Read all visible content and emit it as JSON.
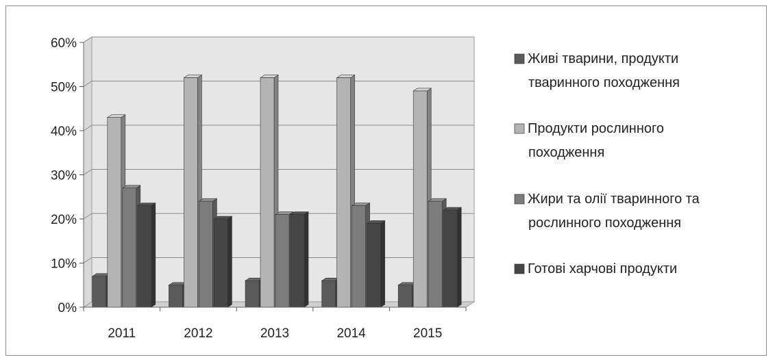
{
  "chart_data": {
    "type": "bar",
    "title": "",
    "xlabel": "",
    "ylabel": "",
    "categories": [
      "2011",
      "2012",
      "2013",
      "2014",
      "2015"
    ],
    "y_ticks": [
      "0%",
      "10%",
      "20%",
      "30%",
      "40%",
      "50%",
      "60%"
    ],
    "ylim": [
      0,
      60
    ],
    "grid": true,
    "legend_position": "right",
    "series": [
      {
        "name": "Живі тварини, продукти тваринного походження",
        "legend_lines": [
          "Живі тварини, продукти",
          "тваринного походження"
        ],
        "color": "#5a5a5a",
        "values": [
          7,
          5,
          6,
          6,
          5
        ]
      },
      {
        "name": "Продукти рослинного походження",
        "legend_lines": [
          "Продукти рослинного",
          "походження"
        ],
        "color": "#b4b4b4",
        "values": [
          43,
          52,
          52,
          52,
          49
        ]
      },
      {
        "name": "Жири та олії тваринного та рослинного походження",
        "legend_lines": [
          "Жири та олії тваринного та",
          "рослинного походження"
        ],
        "color": "#7c7c7c",
        "values": [
          27,
          24,
          21,
          23,
          24
        ]
      },
      {
        "name": "Готові харчові продукти",
        "legend_lines": [
          "Готові харчові продукти"
        ],
        "color": "#454545",
        "values": [
          23,
          20,
          21,
          19,
          22
        ]
      }
    ]
  }
}
